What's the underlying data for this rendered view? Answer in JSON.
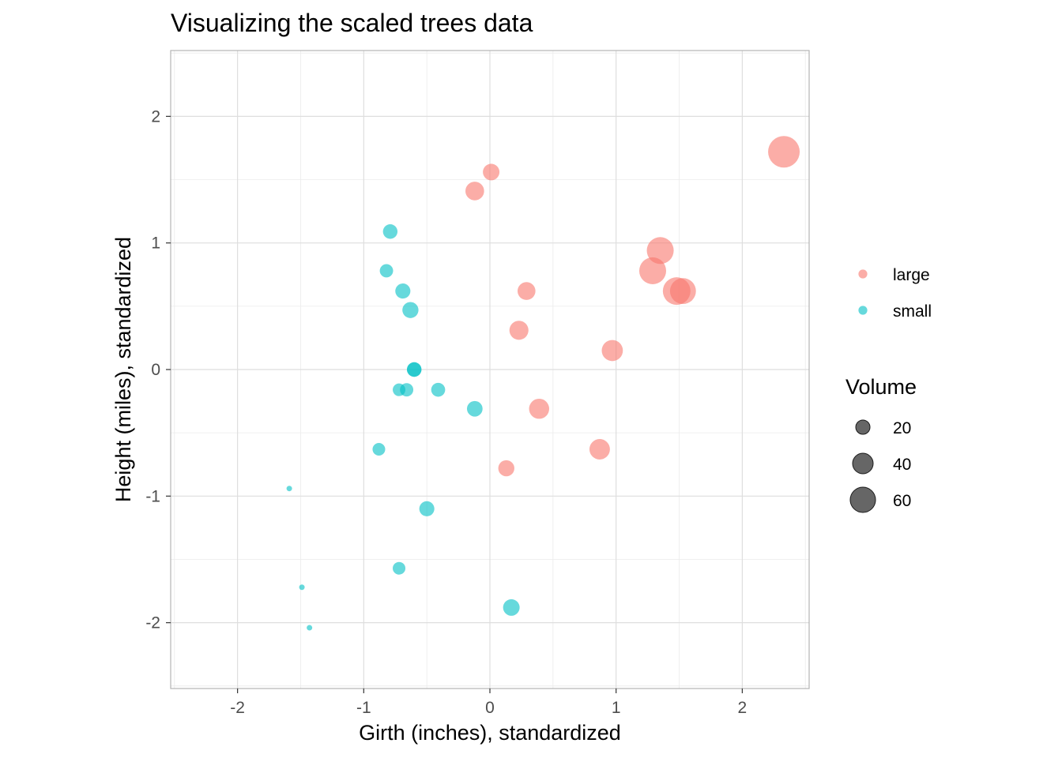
{
  "chart_data": {
    "type": "scatter",
    "title": "Visualizing the scaled trees data",
    "xlabel": "Girth (inches), standardized",
    "ylabel": "Height (miles), standardized",
    "xlim": [
      -2.53,
      2.53
    ],
    "ylim": [
      -2.52,
      2.52
    ],
    "x_ticks": [
      -2,
      -1,
      0,
      1,
      2
    ],
    "y_ticks": [
      -2,
      -1,
      0,
      1,
      2
    ],
    "x_tick_labels": [
      "-2",
      "-1",
      "0",
      "1",
      "2"
    ],
    "y_tick_labels": [
      "-2",
      "-1",
      "0",
      "1",
      "2"
    ],
    "grid": true,
    "legend_position": "right",
    "colors": {
      "large": "#F8766D",
      "small": "#00BFC4",
      "size_key": "#333333"
    },
    "series": [
      {
        "name": "large",
        "color": "#F8766D",
        "points": [
          {
            "x": 2.33,
            "y": 1.72,
            "volume": 77
          },
          {
            "x": 0.01,
            "y": 1.56,
            "volume": 22
          },
          {
            "x": -0.12,
            "y": 1.41,
            "volume": 27
          },
          {
            "x": 1.35,
            "y": 0.94,
            "volume": 55
          },
          {
            "x": 1.29,
            "y": 0.78,
            "volume": 55
          },
          {
            "x": 1.48,
            "y": 0.62,
            "volume": 58
          },
          {
            "x": 1.53,
            "y": 0.62,
            "volume": 51
          },
          {
            "x": 0.29,
            "y": 0.62,
            "volume": 25
          },
          {
            "x": 0.23,
            "y": 0.31,
            "volume": 28
          },
          {
            "x": 0.97,
            "y": 0.15,
            "volume": 34
          },
          {
            "x": 0.39,
            "y": -0.31,
            "volume": 31
          },
          {
            "x": 0.87,
            "y": -0.63,
            "volume": 32
          },
          {
            "x": 0.13,
            "y": -0.78,
            "volume": 21
          }
        ]
      },
      {
        "name": "small",
        "color": "#00BFC4",
        "points": [
          {
            "x": -0.79,
            "y": 1.09,
            "volume": 18
          },
          {
            "x": -0.82,
            "y": 0.78,
            "volume": 16
          },
          {
            "x": -0.69,
            "y": 0.62,
            "volume": 19
          },
          {
            "x": -0.63,
            "y": 0.47,
            "volume": 21
          },
          {
            "x": -0.6,
            "y": 0.0,
            "volume": 18
          },
          {
            "x": -0.6,
            "y": 0.0,
            "volume": 18
          },
          {
            "x": -0.72,
            "y": -0.16,
            "volume": 15
          },
          {
            "x": -0.66,
            "y": -0.16,
            "volume": 16
          },
          {
            "x": -0.41,
            "y": -0.16,
            "volume": 17
          },
          {
            "x": -0.12,
            "y": -0.31,
            "volume": 20
          },
          {
            "x": -0.88,
            "y": -0.63,
            "volume": 15
          },
          {
            "x": -1.59,
            "y": -0.94,
            "volume": 10
          },
          {
            "x": -0.5,
            "y": -1.1,
            "volume": 19
          },
          {
            "x": -0.72,
            "y": -1.57,
            "volume": 15
          },
          {
            "x": -1.49,
            "y": -1.72,
            "volume": 10
          },
          {
            "x": -1.43,
            "y": -2.04,
            "volume": 10
          },
          {
            "x": 0.17,
            "y": -1.88,
            "volume": 22
          }
        ]
      }
    ],
    "legend": {
      "color_entries": [
        "large",
        "small"
      ],
      "size_title": "Volume",
      "size_values": [
        20,
        40,
        60
      ],
      "size_labels": [
        "20",
        "40",
        "60"
      ]
    }
  }
}
